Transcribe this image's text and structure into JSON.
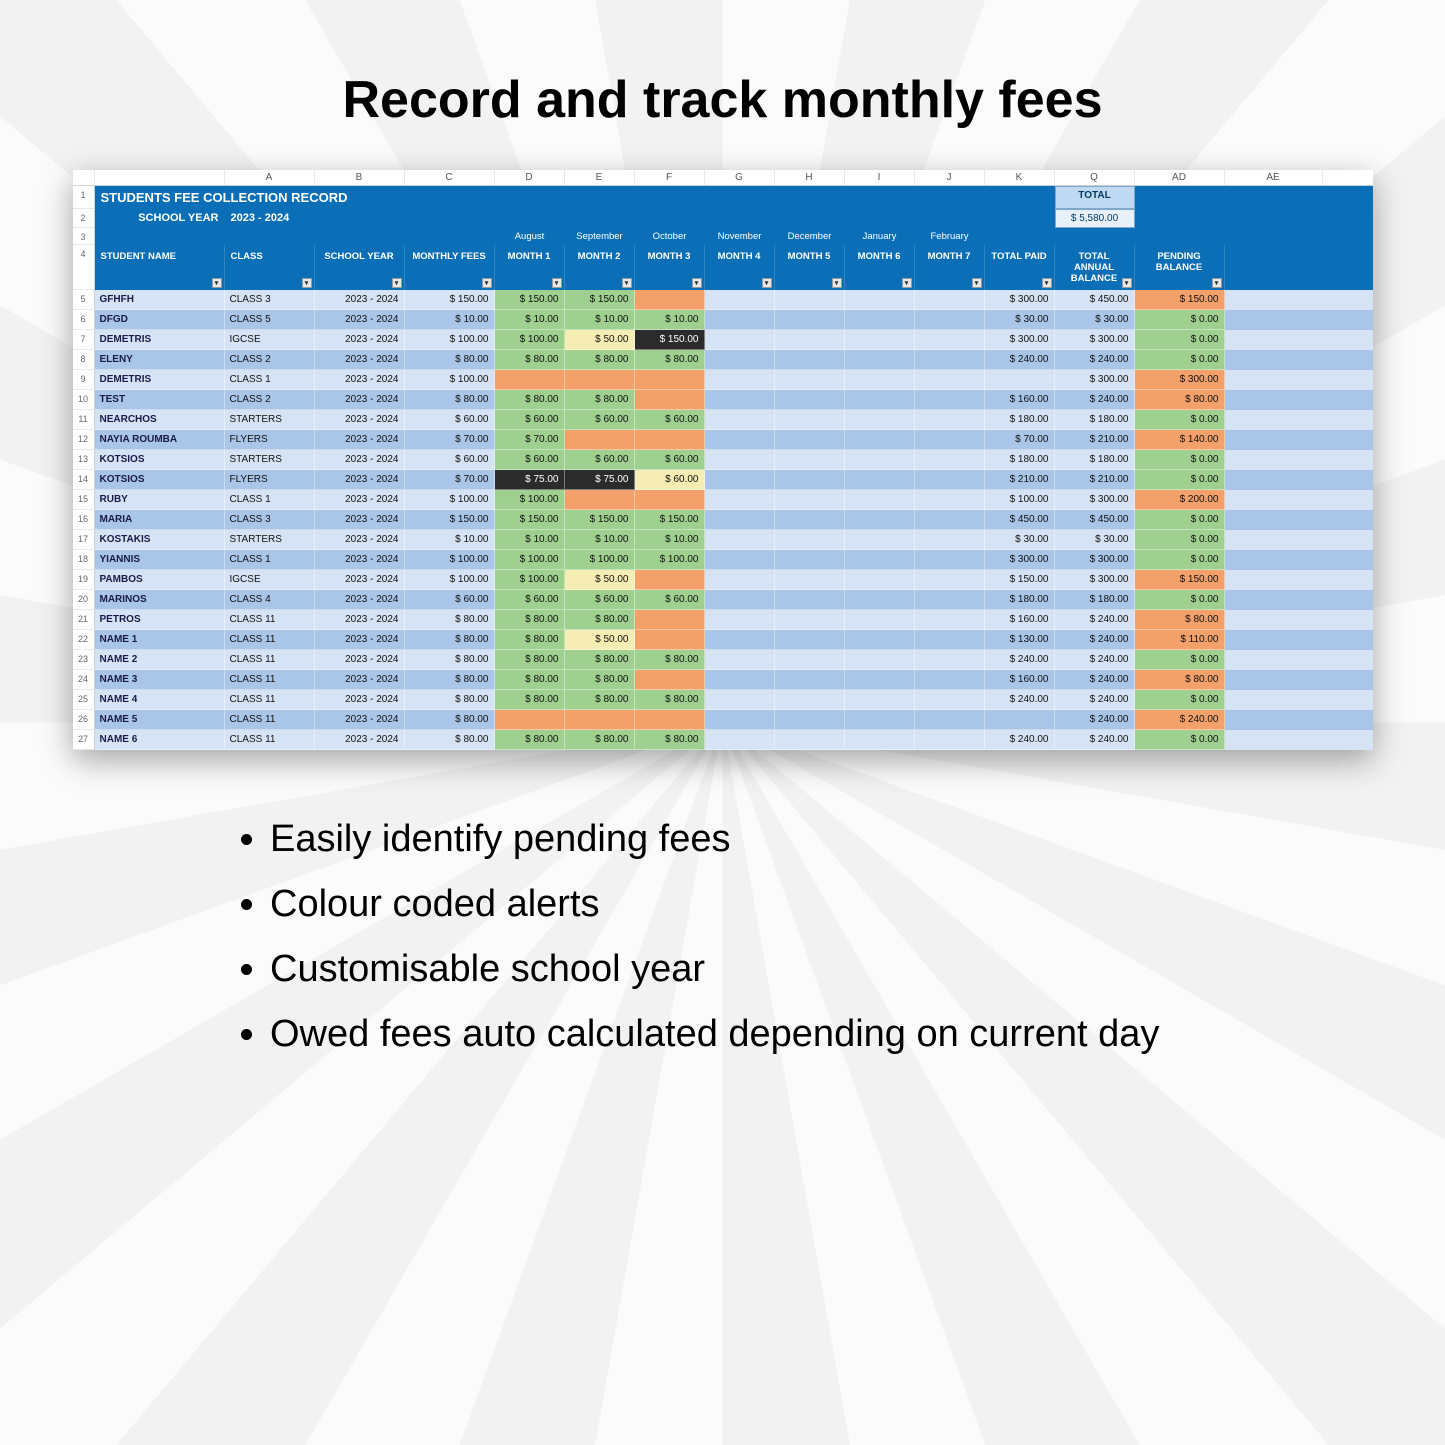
{
  "page": {
    "title": "Record and track monthly fees",
    "bullets": [
      "Easily identify pending fees",
      "Colour coded alerts",
      "Customisable school year",
      "Owed fees auto calculated depending on current day"
    ]
  },
  "colors": {
    "header_bg": "#0b6fb8",
    "row_even": "#d6e3f4",
    "row_odd": "#a9c5e8",
    "cell_green": "#9fd08f",
    "cell_orange": "#f4a06a",
    "cell_yellow": "#f5edb3",
    "cell_dark": "#2b2b2b",
    "total_box_bg": "#bfd9f2",
    "total_val_bg": "#e8f1fa"
  },
  "sheet": {
    "col_letters": [
      "",
      "A",
      "B",
      "C",
      "D",
      "E",
      "F",
      "G",
      "H",
      "I",
      "J",
      "K",
      "Q",
      "AD",
      "AE"
    ],
    "title": "STUDENTS FEE COLLECTION RECORD",
    "school_year_label": "SCHOOL YEAR",
    "school_year_value": "2023 - 2024",
    "total_label": "TOTAL",
    "total_value": "$ 5,580.00",
    "month_names": [
      "August",
      "September",
      "October",
      "November",
      "December",
      "January",
      "February"
    ],
    "headers": {
      "student": "STUDENT NAME",
      "class": "CLASS",
      "year": "SCHOOL YEAR",
      "monthly": "MONTHLY FEES",
      "months": [
        "MONTH 1",
        "MONTH 2",
        "MONTH 3",
        "MONTH 4",
        "MONTH 5",
        "MONTH 6",
        "MONTH 7"
      ],
      "paid": "TOTAL PAID",
      "annual": "TOTAL ANNUAL BALANCE",
      "pending": "PENDING BALANCE"
    },
    "rows": [
      {
        "n": 5,
        "name": "GFHFH",
        "class": "CLASS 3",
        "year": "2023 - 2024",
        "fee": "$ 150.00",
        "m": [
          {
            "v": "$ 150.00",
            "c": "green"
          },
          {
            "v": "$ 150.00",
            "c": "green"
          },
          {
            "v": "",
            "c": "orange"
          },
          {
            "v": ""
          },
          {
            "v": ""
          },
          {
            "v": ""
          },
          {
            "v": ""
          }
        ],
        "paid": "$ 300.00",
        "annual": "$ 450.00",
        "pend": {
          "v": "$ 150.00",
          "c": "orange"
        }
      },
      {
        "n": 6,
        "name": "DFGD",
        "class": "CLASS 5",
        "year": "2023 - 2024",
        "fee": "$ 10.00",
        "m": [
          {
            "v": "$ 10.00",
            "c": "green"
          },
          {
            "v": "$ 10.00",
            "c": "green"
          },
          {
            "v": "$ 10.00",
            "c": "green"
          },
          {
            "v": ""
          },
          {
            "v": ""
          },
          {
            "v": ""
          },
          {
            "v": ""
          }
        ],
        "paid": "$ 30.00",
        "annual": "$ 30.00",
        "pend": {
          "v": "$ 0.00",
          "c": "green"
        }
      },
      {
        "n": 7,
        "name": "DEMETRIS",
        "class": "IGCSE",
        "year": "2023 - 2024",
        "fee": "$ 100.00",
        "m": [
          {
            "v": "$ 100.00",
            "c": "green"
          },
          {
            "v": "$ 50.00",
            "c": "yellow"
          },
          {
            "v": "$ 150.00",
            "c": "dark"
          },
          {
            "v": ""
          },
          {
            "v": ""
          },
          {
            "v": ""
          },
          {
            "v": ""
          }
        ],
        "paid": "$ 300.00",
        "annual": "$ 300.00",
        "pend": {
          "v": "$ 0.00",
          "c": "green"
        }
      },
      {
        "n": 8,
        "name": "ELENY",
        "class": "CLASS 2",
        "year": "2023 - 2024",
        "fee": "$ 80.00",
        "m": [
          {
            "v": "$ 80.00",
            "c": "green"
          },
          {
            "v": "$ 80.00",
            "c": "green"
          },
          {
            "v": "$ 80.00",
            "c": "green"
          },
          {
            "v": ""
          },
          {
            "v": ""
          },
          {
            "v": ""
          },
          {
            "v": ""
          }
        ],
        "paid": "$ 240.00",
        "annual": "$ 240.00",
        "pend": {
          "v": "$ 0.00",
          "c": "green"
        }
      },
      {
        "n": 9,
        "name": "DEMETRIS",
        "class": "CLASS 1",
        "year": "2023 - 2024",
        "fee": "$ 100.00",
        "m": [
          {
            "v": "",
            "c": "orange"
          },
          {
            "v": "",
            "c": "orange"
          },
          {
            "v": "",
            "c": "orange"
          },
          {
            "v": ""
          },
          {
            "v": ""
          },
          {
            "v": ""
          },
          {
            "v": ""
          }
        ],
        "paid": "",
        "annual": "$ 300.00",
        "pend": {
          "v": "$ 300.00",
          "c": "orange"
        }
      },
      {
        "n": 10,
        "name": "TEST",
        "class": "CLASS 2",
        "year": "2023 - 2024",
        "fee": "$ 80.00",
        "m": [
          {
            "v": "$ 80.00",
            "c": "green"
          },
          {
            "v": "$ 80.00",
            "c": "green"
          },
          {
            "v": "",
            "c": "orange"
          },
          {
            "v": ""
          },
          {
            "v": ""
          },
          {
            "v": ""
          },
          {
            "v": ""
          }
        ],
        "paid": "$ 160.00",
        "annual": "$ 240.00",
        "pend": {
          "v": "$ 80.00",
          "c": "orange"
        }
      },
      {
        "n": 11,
        "name": "NEARCHOS",
        "class": "STARTERS",
        "year": "2023 - 2024",
        "fee": "$ 60.00",
        "m": [
          {
            "v": "$ 60.00",
            "c": "green"
          },
          {
            "v": "$ 60.00",
            "c": "green"
          },
          {
            "v": "$ 60.00",
            "c": "green"
          },
          {
            "v": ""
          },
          {
            "v": ""
          },
          {
            "v": ""
          },
          {
            "v": ""
          }
        ],
        "paid": "$ 180.00",
        "annual": "$ 180.00",
        "pend": {
          "v": "$ 0.00",
          "c": "green"
        }
      },
      {
        "n": 12,
        "name": "NAYIA ROUMBA",
        "class": "FLYERS",
        "year": "2023 - 2024",
        "fee": "$ 70.00",
        "m": [
          {
            "v": "$ 70.00",
            "c": "green"
          },
          {
            "v": "",
            "c": "orange"
          },
          {
            "v": "",
            "c": "orange"
          },
          {
            "v": ""
          },
          {
            "v": ""
          },
          {
            "v": ""
          },
          {
            "v": ""
          }
        ],
        "paid": "$ 70.00",
        "annual": "$ 210.00",
        "pend": {
          "v": "$ 140.00",
          "c": "orange"
        }
      },
      {
        "n": 13,
        "name": "KOTSIOS",
        "class": "STARTERS",
        "year": "2023 - 2024",
        "fee": "$ 60.00",
        "m": [
          {
            "v": "$ 60.00",
            "c": "green"
          },
          {
            "v": "$ 60.00",
            "c": "green"
          },
          {
            "v": "$ 60.00",
            "c": "green"
          },
          {
            "v": ""
          },
          {
            "v": ""
          },
          {
            "v": ""
          },
          {
            "v": ""
          }
        ],
        "paid": "$ 180.00",
        "annual": "$ 180.00",
        "pend": {
          "v": "$ 0.00",
          "c": "green"
        }
      },
      {
        "n": 14,
        "name": "KOTSIOS",
        "class": "FLYERS",
        "year": "2023 - 2024",
        "fee": "$ 70.00",
        "m": [
          {
            "v": "$ 75.00",
            "c": "dark"
          },
          {
            "v": "$ 75.00",
            "c": "dark"
          },
          {
            "v": "$ 60.00",
            "c": "yellow"
          },
          {
            "v": ""
          },
          {
            "v": ""
          },
          {
            "v": ""
          },
          {
            "v": ""
          }
        ],
        "paid": "$ 210.00",
        "annual": "$ 210.00",
        "pend": {
          "v": "$ 0.00",
          "c": "green"
        }
      },
      {
        "n": 15,
        "name": "RUBY",
        "class": "CLASS 1",
        "year": "2023 - 2024",
        "fee": "$ 100.00",
        "m": [
          {
            "v": "$ 100.00",
            "c": "green"
          },
          {
            "v": "",
            "c": "orange"
          },
          {
            "v": "",
            "c": "orange"
          },
          {
            "v": ""
          },
          {
            "v": ""
          },
          {
            "v": ""
          },
          {
            "v": ""
          }
        ],
        "paid": "$ 100.00",
        "annual": "$ 300.00",
        "pend": {
          "v": "$ 200.00",
          "c": "orange"
        }
      },
      {
        "n": 16,
        "name": "MARIA",
        "class": "CLASS 3",
        "year": "2023 - 2024",
        "fee": "$ 150.00",
        "m": [
          {
            "v": "$ 150.00",
            "c": "green"
          },
          {
            "v": "$ 150.00",
            "c": "green"
          },
          {
            "v": "$ 150.00",
            "c": "green"
          },
          {
            "v": ""
          },
          {
            "v": ""
          },
          {
            "v": ""
          },
          {
            "v": ""
          }
        ],
        "paid": "$ 450.00",
        "annual": "$ 450.00",
        "pend": {
          "v": "$ 0.00",
          "c": "green"
        }
      },
      {
        "n": 17,
        "name": "KOSTAKIS",
        "class": "STARTERS",
        "year": "2023 - 2024",
        "fee": "$ 10.00",
        "m": [
          {
            "v": "$ 10.00",
            "c": "green"
          },
          {
            "v": "$ 10.00",
            "c": "green"
          },
          {
            "v": "$ 10.00",
            "c": "green"
          },
          {
            "v": ""
          },
          {
            "v": ""
          },
          {
            "v": ""
          },
          {
            "v": ""
          }
        ],
        "paid": "$ 30.00",
        "annual": "$ 30.00",
        "pend": {
          "v": "$ 0.00",
          "c": "green"
        }
      },
      {
        "n": 18,
        "name": "YIANNIS",
        "class": "CLASS 1",
        "year": "2023 - 2024",
        "fee": "$ 100.00",
        "m": [
          {
            "v": "$ 100.00",
            "c": "green"
          },
          {
            "v": "$ 100.00",
            "c": "green"
          },
          {
            "v": "$ 100.00",
            "c": "green"
          },
          {
            "v": ""
          },
          {
            "v": ""
          },
          {
            "v": ""
          },
          {
            "v": ""
          }
        ],
        "paid": "$ 300.00",
        "annual": "$ 300.00",
        "pend": {
          "v": "$ 0.00",
          "c": "green"
        }
      },
      {
        "n": 19,
        "name": "PAMBOS",
        "class": "IGCSE",
        "year": "2023 - 2024",
        "fee": "$ 100.00",
        "m": [
          {
            "v": "$ 100.00",
            "c": "green"
          },
          {
            "v": "$ 50.00",
            "c": "yellow"
          },
          {
            "v": "",
            "c": "orange"
          },
          {
            "v": ""
          },
          {
            "v": ""
          },
          {
            "v": ""
          },
          {
            "v": ""
          }
        ],
        "paid": "$ 150.00",
        "annual": "$ 300.00",
        "pend": {
          "v": "$ 150.00",
          "c": "orange"
        }
      },
      {
        "n": 20,
        "name": "MARINOS",
        "class": "CLASS 4",
        "year": "2023 - 2024",
        "fee": "$ 60.00",
        "m": [
          {
            "v": "$ 60.00",
            "c": "green"
          },
          {
            "v": "$ 60.00",
            "c": "green"
          },
          {
            "v": "$ 60.00",
            "c": "green"
          },
          {
            "v": ""
          },
          {
            "v": ""
          },
          {
            "v": ""
          },
          {
            "v": ""
          }
        ],
        "paid": "$ 180.00",
        "annual": "$ 180.00",
        "pend": {
          "v": "$ 0.00",
          "c": "green"
        }
      },
      {
        "n": 21,
        "name": "PETROS",
        "class": "CLASS 11",
        "year": "2023 - 2024",
        "fee": "$ 80.00",
        "m": [
          {
            "v": "$ 80.00",
            "c": "green"
          },
          {
            "v": "$ 80.00",
            "c": "green"
          },
          {
            "v": "",
            "c": "orange"
          },
          {
            "v": ""
          },
          {
            "v": ""
          },
          {
            "v": ""
          },
          {
            "v": ""
          }
        ],
        "paid": "$ 160.00",
        "annual": "$ 240.00",
        "pend": {
          "v": "$ 80.00",
          "c": "orange"
        }
      },
      {
        "n": 22,
        "name": "NAME 1",
        "class": "CLASS 11",
        "year": "2023 - 2024",
        "fee": "$ 80.00",
        "m": [
          {
            "v": "$ 80.00",
            "c": "green"
          },
          {
            "v": "$ 50.00",
            "c": "yellow"
          },
          {
            "v": "",
            "c": "orange"
          },
          {
            "v": ""
          },
          {
            "v": ""
          },
          {
            "v": ""
          },
          {
            "v": ""
          }
        ],
        "paid": "$ 130.00",
        "annual": "$ 240.00",
        "pend": {
          "v": "$ 110.00",
          "c": "orange"
        }
      },
      {
        "n": 23,
        "name": "NAME 2",
        "class": "CLASS 11",
        "year": "2023 - 2024",
        "fee": "$ 80.00",
        "m": [
          {
            "v": "$ 80.00",
            "c": "green"
          },
          {
            "v": "$ 80.00",
            "c": "green"
          },
          {
            "v": "$ 80.00",
            "c": "green"
          },
          {
            "v": ""
          },
          {
            "v": ""
          },
          {
            "v": ""
          },
          {
            "v": ""
          }
        ],
        "paid": "$ 240.00",
        "annual": "$ 240.00",
        "pend": {
          "v": "$ 0.00",
          "c": "green"
        }
      },
      {
        "n": 24,
        "name": "NAME 3",
        "class": "CLASS 11",
        "year": "2023 - 2024",
        "fee": "$ 80.00",
        "m": [
          {
            "v": "$ 80.00",
            "c": "green"
          },
          {
            "v": "$ 80.00",
            "c": "green"
          },
          {
            "v": "",
            "c": "orange"
          },
          {
            "v": ""
          },
          {
            "v": ""
          },
          {
            "v": ""
          },
          {
            "v": ""
          }
        ],
        "paid": "$ 160.00",
        "annual": "$ 240.00",
        "pend": {
          "v": "$ 80.00",
          "c": "orange"
        }
      },
      {
        "n": 25,
        "name": "NAME 4",
        "class": "CLASS 11",
        "year": "2023 - 2024",
        "fee": "$ 80.00",
        "m": [
          {
            "v": "$ 80.00",
            "c": "green"
          },
          {
            "v": "$ 80.00",
            "c": "green"
          },
          {
            "v": "$ 80.00",
            "c": "green"
          },
          {
            "v": ""
          },
          {
            "v": ""
          },
          {
            "v": ""
          },
          {
            "v": ""
          }
        ],
        "paid": "$ 240.00",
        "annual": "$ 240.00",
        "pend": {
          "v": "$ 0.00",
          "c": "green"
        }
      },
      {
        "n": 26,
        "name": "NAME 5",
        "class": "CLASS 11",
        "year": "2023 - 2024",
        "fee": "$ 80.00",
        "m": [
          {
            "v": "",
            "c": "orange"
          },
          {
            "v": "",
            "c": "orange"
          },
          {
            "v": "",
            "c": "orange"
          },
          {
            "v": ""
          },
          {
            "v": ""
          },
          {
            "v": ""
          },
          {
            "v": ""
          }
        ],
        "paid": "",
        "annual": "$ 240.00",
        "pend": {
          "v": "$ 240.00",
          "c": "orange"
        }
      },
      {
        "n": 27,
        "name": "NAME 6",
        "class": "CLASS 11",
        "year": "2023 - 2024",
        "fee": "$ 80.00",
        "m": [
          {
            "v": "$ 80.00",
            "c": "green"
          },
          {
            "v": "$ 80.00",
            "c": "green"
          },
          {
            "v": "$ 80.00",
            "c": "green"
          },
          {
            "v": ""
          },
          {
            "v": ""
          },
          {
            "v": ""
          },
          {
            "v": ""
          }
        ],
        "paid": "$ 240.00",
        "annual": "$ 240.00",
        "pend": {
          "v": "$ 0.00",
          "c": "green"
        }
      }
    ]
  }
}
